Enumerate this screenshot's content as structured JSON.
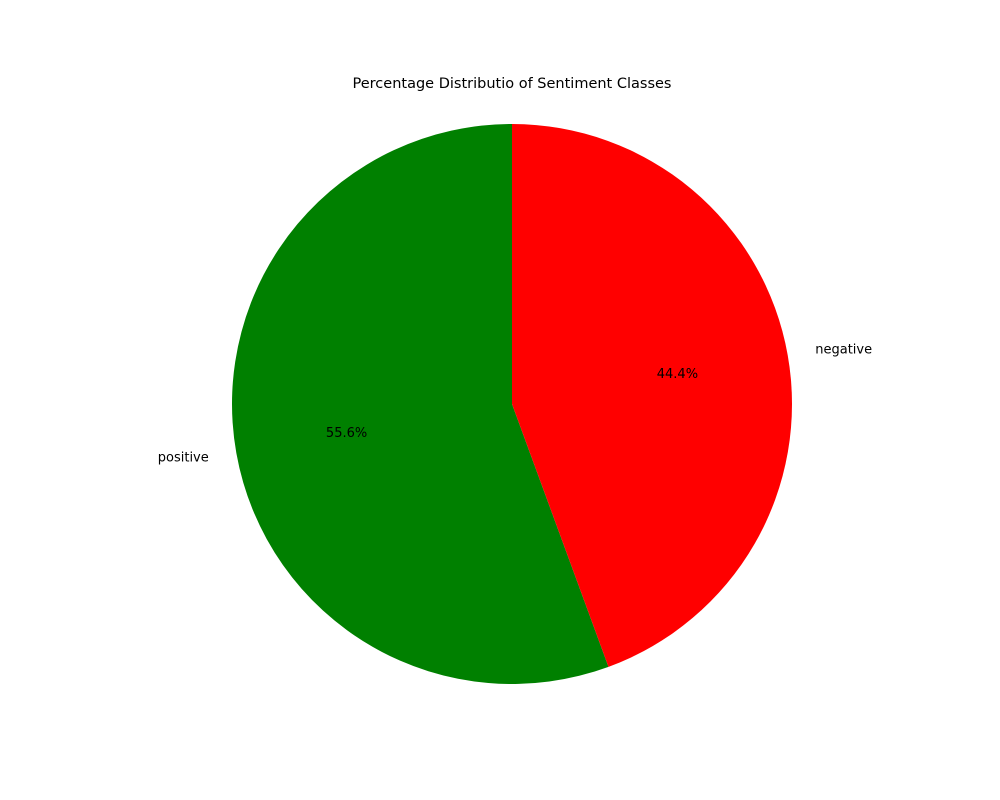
{
  "chart_data": {
    "type": "pie",
    "title": "Percentage Distributio of Sentiment Classes",
    "slices": [
      {
        "label": "positive",
        "value": 55.6,
        "pct_label": "55.6%",
        "color": "#008000"
      },
      {
        "label": "negative",
        "value": 44.4,
        "pct_label": "44.4%",
        "color": "#ff0000"
      }
    ],
    "start_angle_deg": 90,
    "direction": "counterclockwise"
  }
}
